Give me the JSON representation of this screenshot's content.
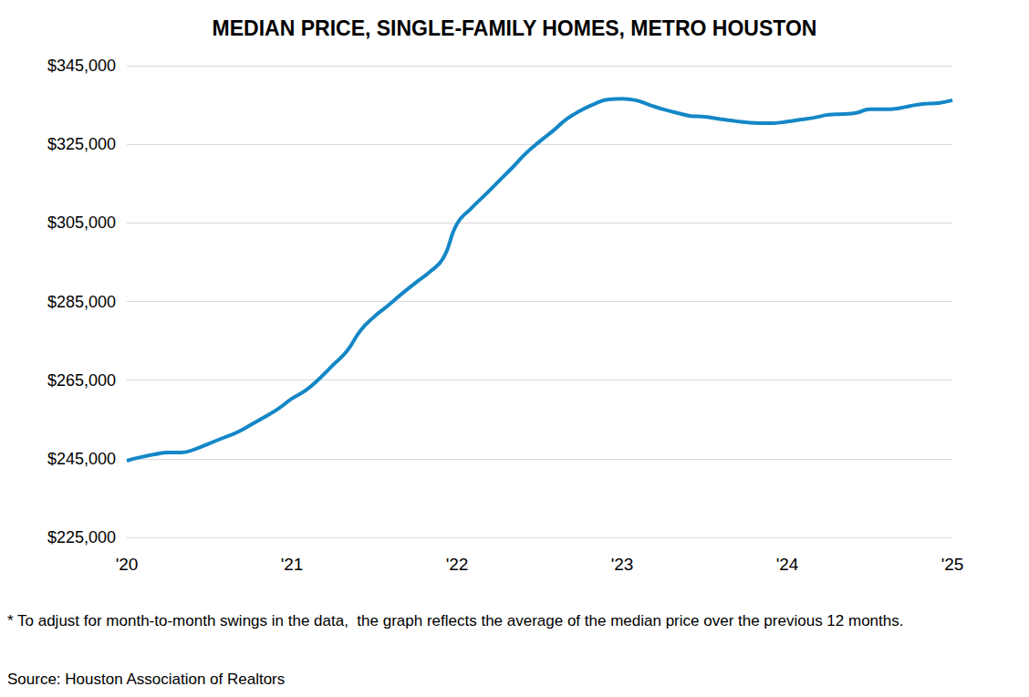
{
  "chart_data": {
    "type": "line",
    "title": "MEDIAN PRICE, SINGLE-FAMILY HOMES, METRO HOUSTON",
    "categories": [
      "'20",
      null,
      null,
      null,
      null,
      null,
      null,
      null,
      null,
      null,
      null,
      null,
      "'21",
      null,
      null,
      null,
      null,
      null,
      null,
      null,
      null,
      null,
      null,
      null,
      "'22",
      null,
      null,
      null,
      null,
      null,
      null,
      null,
      null,
      null,
      null,
      null,
      "'23",
      null,
      null,
      null,
      null,
      null,
      null,
      null,
      null,
      null,
      null,
      null,
      "'24",
      null,
      null,
      null,
      null,
      null,
      null,
      null,
      null,
      null,
      null,
      null,
      "'25"
    ],
    "values": [
      244500,
      245400,
      246100,
      246600,
      246600,
      247500,
      248900,
      250300,
      251700,
      253600,
      255600,
      257700,
      260300,
      262400,
      265400,
      268900,
      272400,
      277700,
      281200,
      284000,
      287000,
      289800,
      292500,
      296000,
      304800,
      308600,
      312000,
      315500,
      319000,
      322700,
      325700,
      328500,
      331500,
      333600,
      335300,
      336400,
      336600,
      336200,
      335000,
      333900,
      333000,
      332200,
      332000,
      331500,
      331000,
      330600,
      330400,
      330400,
      330800,
      331300,
      331800,
      332500,
      332700,
      333000,
      333900,
      333900,
      334100,
      334800,
      335300,
      335500,
      336200
    ],
    "color": "#1487c6",
    "ylim": [
      225000,
      345000
    ],
    "yticks": [
      {
        "value": 225000,
        "label": "$225,000"
      },
      {
        "value": 245000,
        "label": "$245,000"
      },
      {
        "value": 265000,
        "label": "$265,000"
      },
      {
        "value": 285000,
        "label": "$285,000"
      },
      {
        "value": 305000,
        "label": "$305,000"
      },
      {
        "value": 325000,
        "label": "$325,000"
      },
      {
        "value": 345000,
        "label": "$345,000"
      }
    ],
    "grid": true,
    "footnote": "* To adjust for month-to-month swings in the data,  the graph reflects the average of the median price over the previous 12 months.",
    "source": "Source: Houston Association of Realtors"
  }
}
